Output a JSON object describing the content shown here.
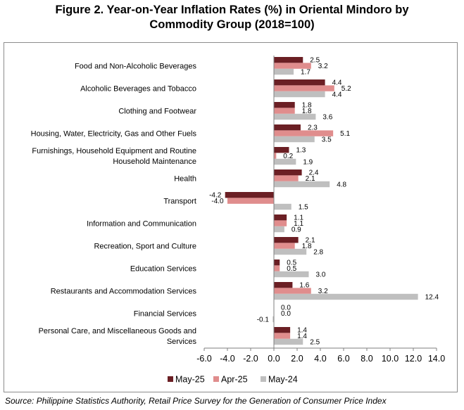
{
  "title_line1": "Figure 2. Year-on-Year Inflation Rates (%) in Oriental Mindoro by",
  "title_line2": "Commodity Group (2018=100)",
  "source": "Source: Philippine Statistics Authority, Retail Price Survey for the Generation of Consumer Price Index",
  "chart_data": {
    "type": "bar",
    "orientation": "horizontal",
    "title": "Figure 2. Year-on-Year Inflation Rates (%) in Oriental Mindoro by Commodity Group (2018=100)",
    "categories": [
      "Food and Non-Alcoholic Beverages",
      "Alcoholic Beverages and Tobacco",
      "Clothing and Footwear",
      "Housing, Water, Electricity, Gas and Other Fuels",
      "Furnishings, Household Equipment and Routine Household Maintenance",
      "Health",
      "Transport",
      "Information and Communication",
      "Recreation, Sport and Culture",
      "Education Services",
      "Restaurants and Accommodation Services",
      "Financial Services",
      "Personal Care, and Miscellaneous Goods and Services"
    ],
    "category_lines": [
      [
        "Food and Non-Alcoholic Beverages"
      ],
      [
        "Alcoholic Beverages and Tobacco"
      ],
      [
        "Clothing and Footwear"
      ],
      [
        "Housing, Water, Electricity, Gas and Other Fuels"
      ],
      [
        "Furnishings, Household Equipment and Routine",
        "Household Maintenance"
      ],
      [
        "Health"
      ],
      [
        "Transport"
      ],
      [
        "Information and Communication"
      ],
      [
        "Recreation, Sport and Culture"
      ],
      [
        "Education Services"
      ],
      [
        "Restaurants and Accommodation Services"
      ],
      [
        "Financial Services"
      ],
      [
        "Personal Care, and Miscellaneous Goods and",
        "Services"
      ]
    ],
    "series": [
      {
        "name": "May-25",
        "color": "#6b1f24",
        "values": [
          2.5,
          4.4,
          1.8,
          2.3,
          1.3,
          2.4,
          -4.2,
          1.1,
          2.1,
          0.5,
          1.6,
          0.0,
          1.4
        ],
        "labels": [
          "2.5",
          "4.4",
          "1.8",
          "2.3",
          "1.3",
          "2.4",
          "-4.2",
          "1.1",
          "2.1",
          "0.5",
          "1.6",
          "0.0",
          "1.4"
        ]
      },
      {
        "name": "Apr-25",
        "color": "#e08d8d",
        "values": [
          3.2,
          5.2,
          1.8,
          5.1,
          0.2,
          2.1,
          -4.0,
          1.1,
          1.8,
          0.5,
          3.2,
          0.0,
          1.4
        ],
        "labels": [
          "3.2",
          "5.2",
          "1.8",
          "5.1",
          "0.2",
          "2.1",
          "-4.0",
          "1.1",
          "1.8",
          "0.5",
          "3.2",
          "0.0",
          "1.4"
        ]
      },
      {
        "name": "May-24",
        "color": "#bfbfbf",
        "values": [
          1.7,
          4.4,
          3.6,
          3.5,
          1.9,
          4.8,
          1.5,
          0.9,
          2.8,
          3.0,
          12.4,
          -0.1,
          2.5
        ],
        "labels": [
          "1.7",
          "4.4",
          "3.6",
          "3.5",
          "1.9",
          "4.8",
          "1.5",
          "0.9",
          "2.8",
          "3.0",
          "12.4",
          "-0.1",
          "2.5"
        ]
      }
    ],
    "xlim": [
      -6.0,
      14.0
    ],
    "xticks": [
      "-6.0",
      "-4.0",
      "-2.0",
      "0.0",
      "2.0",
      "4.0",
      "6.0",
      "8.0",
      "10.0",
      "12.0",
      "14.0"
    ],
    "grid": false,
    "legend_position": "bottom"
  }
}
